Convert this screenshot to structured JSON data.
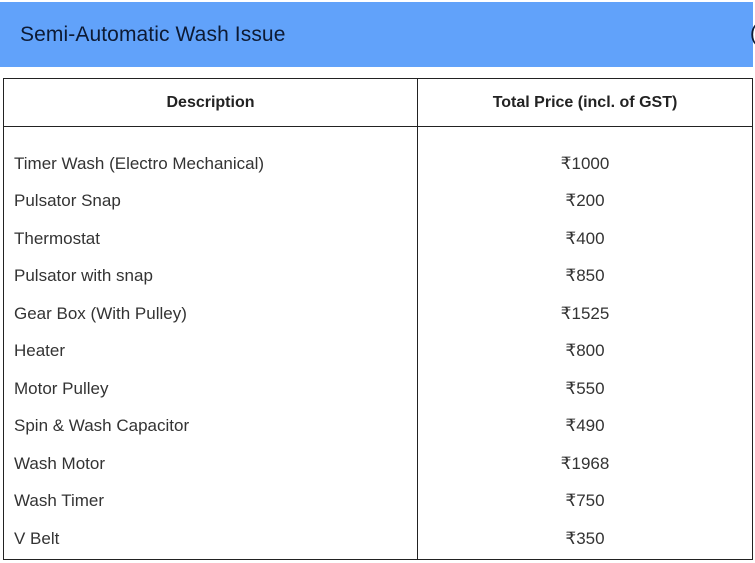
{
  "header": {
    "title": "Semi-Automatic Wash Issue",
    "edge_fragment": "("
  },
  "table": {
    "columns": [
      "Description",
      "Total Price (incl. of GST)"
    ],
    "rows": [
      {
        "description": "Timer Wash (Electro Mechanical)",
        "price": "₹1000"
      },
      {
        "description": "Pulsator Snap",
        "price": "₹200"
      },
      {
        "description": "Thermostat",
        "price": "₹400"
      },
      {
        "description": "Pulsator with snap",
        "price": "₹850"
      },
      {
        "description": "Gear Box (With Pulley)",
        "price": "₹1525"
      },
      {
        "description": "Heater",
        "price": "₹800"
      },
      {
        "description": "Motor Pulley",
        "price": "₹550"
      },
      {
        "description": "Spin & Wash Capacitor",
        "price": "₹490"
      },
      {
        "description": "Wash Motor",
        "price": "₹1968"
      },
      {
        "description": "Wash Timer",
        "price": "₹750"
      },
      {
        "description": "V Belt",
        "price": "₹350"
      }
    ]
  },
  "colors": {
    "header_bg": "#61a2fa",
    "border": "#222222",
    "text": "#333333"
  }
}
